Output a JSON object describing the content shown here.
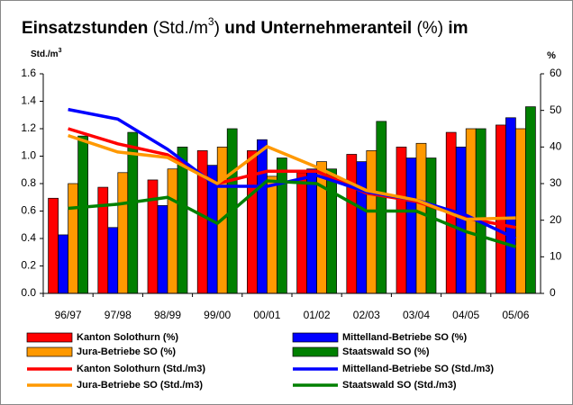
{
  "chart_data": {
    "type": "bar",
    "title": [
      "Einsatzstunden",
      " (Std./m",
      "3",
      ") ",
      "und Unternehmeranteil",
      " (%) ",
      "im"
    ],
    "ylabel": [
      "Std./m",
      "3"
    ],
    "y2label": "%",
    "categories": [
      "96/97",
      "97/98",
      "98/99",
      "99/00",
      "00/01",
      "01/02",
      "02/03",
      "03/04",
      "04/05",
      "05/06"
    ],
    "ylim": [
      0,
      1.6
    ],
    "yticks": [
      {
        "value": 0,
        "label": "0.0"
      },
      {
        "value": 0.2,
        "label": "0.2"
      },
      {
        "value": 0.4,
        "label": "0.4"
      },
      {
        "value": 0.6,
        "label": "0.6"
      },
      {
        "value": 0.8,
        "label": "0.8"
      },
      {
        "value": 1,
        "label": "1.0"
      },
      {
        "value": 1.2,
        "label": "1.2"
      },
      {
        "value": 1.4,
        "label": "1.4"
      },
      {
        "value": 1.6,
        "label": "1.6"
      }
    ],
    "y2lim": [
      0,
      60
    ],
    "y2ticks": [
      0,
      10,
      20,
      30,
      40,
      50,
      60
    ],
    "grid": false,
    "series": [
      {
        "name": "Kanton Solothurn (%)",
        "type": "bar",
        "axis": "y2",
        "color": "#ff0000",
        "values": [
          26,
          29,
          31,
          39,
          39,
          33,
          38,
          40,
          44,
          46
        ]
      },
      {
        "name": "Mittelland-Betriebe SO (%)",
        "type": "bar",
        "axis": "y2",
        "color": "#0000ff",
        "values": [
          16,
          18,
          24,
          35,
          42,
          34,
          36,
          37,
          40,
          48
        ]
      },
      {
        "name": "Jura-Betriebe SO (%)",
        "type": "bar",
        "axis": "y2",
        "color": "#ff9900",
        "values": [
          30,
          33,
          34,
          40,
          32,
          36,
          39,
          41,
          45,
          45
        ]
      },
      {
        "name": "Staatswald SO (%)",
        "type": "bar",
        "axis": "y2",
        "color": "#008000",
        "values": [
          43,
          44,
          40,
          45,
          37,
          34,
          47,
          37,
          45,
          51
        ]
      },
      {
        "name": "Kanton Solothurn (Std./m3)",
        "type": "line",
        "color": "#ff0000",
        "values": [
          1.2,
          1.09,
          1.01,
          0.8,
          0.89,
          0.89,
          0.73,
          0.67,
          0.55,
          0.48
        ]
      },
      {
        "name": "Mittelland-Betriebe SO (Std./m3)",
        "type": "line",
        "color": "#0000ff",
        "values": [
          1.34,
          1.27,
          1.05,
          0.78,
          0.78,
          0.86,
          0.74,
          0.68,
          0.57,
          0.4
        ]
      },
      {
        "name": "Jura-Betriebe SO (Std./m3)",
        "type": "line",
        "color": "#ff9900",
        "values": [
          1.15,
          1.03,
          0.99,
          0.8,
          1.07,
          0.92,
          0.75,
          0.68,
          0.54,
          0.55
        ]
      },
      {
        "name": "Staatswald SO (Std./m3)",
        "type": "line",
        "color": "#008000",
        "values": [
          0.62,
          0.65,
          0.7,
          0.51,
          0.82,
          0.8,
          0.6,
          0.6,
          0.45,
          0.34
        ]
      }
    ]
  }
}
